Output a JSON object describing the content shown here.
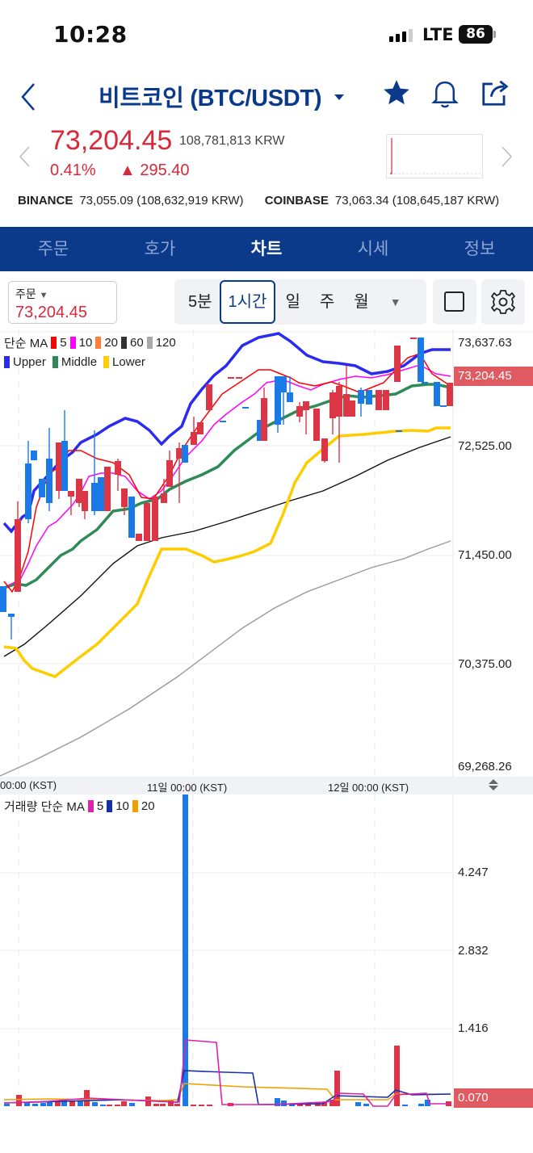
{
  "status_bar": {
    "time": "10:28",
    "network": "LTE",
    "battery": "86"
  },
  "header": {
    "title": "비트코인 (BTC/USDT)",
    "icons": [
      "back-icon",
      "star-icon",
      "bell-icon",
      "share-icon"
    ]
  },
  "price": {
    "usdt": "73,204.45",
    "krw": "108,781,813 KRW",
    "change_pct": "0.41%",
    "change_abs": "▲ 295.40"
  },
  "exchanges": [
    {
      "name": "BINANCE",
      "value": "73,055.09 (108,632,919 KRW)"
    },
    {
      "name": "COINBASE",
      "value": "73,063.34 (108,645,187 KRW)"
    }
  ],
  "tabs": [
    {
      "label": "주문",
      "active": false
    },
    {
      "label": "호가",
      "active": false
    },
    {
      "label": "차트",
      "active": true
    },
    {
      "label": "시세",
      "active": false
    },
    {
      "label": "정보",
      "active": false
    }
  ],
  "toolbar": {
    "order_label": "주문",
    "order_price": "73,204.45",
    "periods": [
      "5분",
      "1시간",
      "일",
      "주",
      "월"
    ],
    "active_period": "1시간"
  },
  "chart": {
    "legend_ma_title": "단순 MA",
    "ma_items": [
      {
        "label": "5",
        "color": "#ff0000"
      },
      {
        "label": "10",
        "color": "#ff00ff"
      },
      {
        "label": "20",
        "color": "#ff7f3a"
      },
      {
        "label": "60",
        "color": "#333333"
      },
      {
        "label": "120",
        "color": "#aaaaaa"
      }
    ],
    "bb_items": [
      {
        "label": "Upper",
        "color": "#2b2bf0"
      },
      {
        "label": "Middle",
        "color": "#2e8b57"
      },
      {
        "label": "Lower",
        "color": "#ffcc00"
      }
    ],
    "y_labels": [
      "73,637.63",
      "72,525.00",
      "71,450.00",
      "70,375.00",
      "69,268.26"
    ],
    "current_price_tag": "73,204.45",
    "x_labels": [
      "00:00 (KST)",
      "11일 00:00 (KST)",
      "12일 00:00 (KST)"
    ]
  },
  "volume": {
    "legend_title": "거래량 단순 MA",
    "ma_items": [
      {
        "label": "5",
        "color": "#e020b0"
      },
      {
        "label": "10",
        "color": "#1530a8"
      },
      {
        "label": "20",
        "color": "#f0a000"
      }
    ],
    "y_labels": [
      "4.247",
      "2.832",
      "1.416"
    ],
    "current_tag": "0.070"
  },
  "chart_data": {
    "type": "candlestick",
    "title": "BTC/USDT 1시간",
    "ylim": [
      69268.26,
      73637.63
    ],
    "y_ticks": [
      73637.63,
      72525.0,
      71450.0,
      70375.0,
      69268.26
    ],
    "x_ticks": [
      "00:00 (KST)",
      "11일 00:00 (KST)",
      "12일 00:00 (KST)"
    ],
    "last_price": 73204.45,
    "indicators": [
      "MA5",
      "MA10",
      "MA20",
      "MA60",
      "MA120",
      "BB Upper",
      "BB Middle",
      "BB Lower"
    ],
    "volume_ylim": [
      0,
      4.8
    ],
    "volume_ticks": [
      4.247,
      2.832,
      1.416
    ],
    "volume_last": 0.07
  }
}
